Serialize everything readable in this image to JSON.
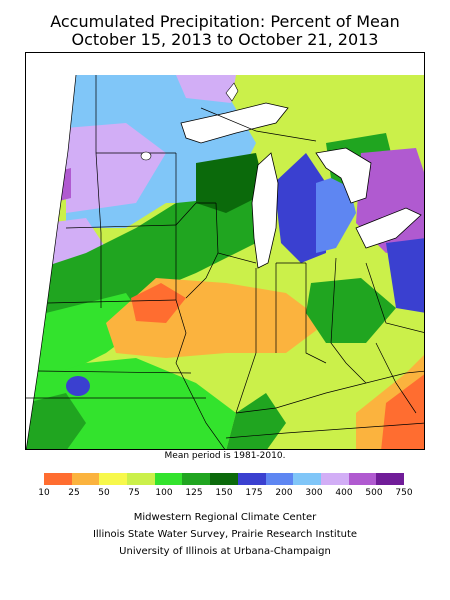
{
  "title": {
    "line1": "Accumulated Precipitation: Percent of Mean",
    "line2": "October 15, 2013 to October 21, 2013"
  },
  "map": {
    "region": "Midwestern United States",
    "variable": "Accumulated precipitation, percent of mean"
  },
  "mean_note": "Mean period is 1981-2010.",
  "legend": {
    "ticks": [
      "10",
      "25",
      "50",
      "75",
      "100",
      "125",
      "150",
      "175",
      "200",
      "300",
      "400",
      "500",
      "750"
    ],
    "colors": [
      "#ff6d30",
      "#fbb33e",
      "#f7f84b",
      "#cbf04a",
      "#33e32d",
      "#20a520",
      "#0b6a0b",
      "#3a40d0",
      "#5e86f2",
      "#80c6f8",
      "#d2aef6",
      "#b05ad0",
      "#701c98"
    ]
  },
  "credits": {
    "line1": "Midwestern Regional Climate Center",
    "line2": "Illinois State Water Survey, Prairie Research Institute",
    "line3": "University of Illinois at Urbana-Champaign"
  }
}
